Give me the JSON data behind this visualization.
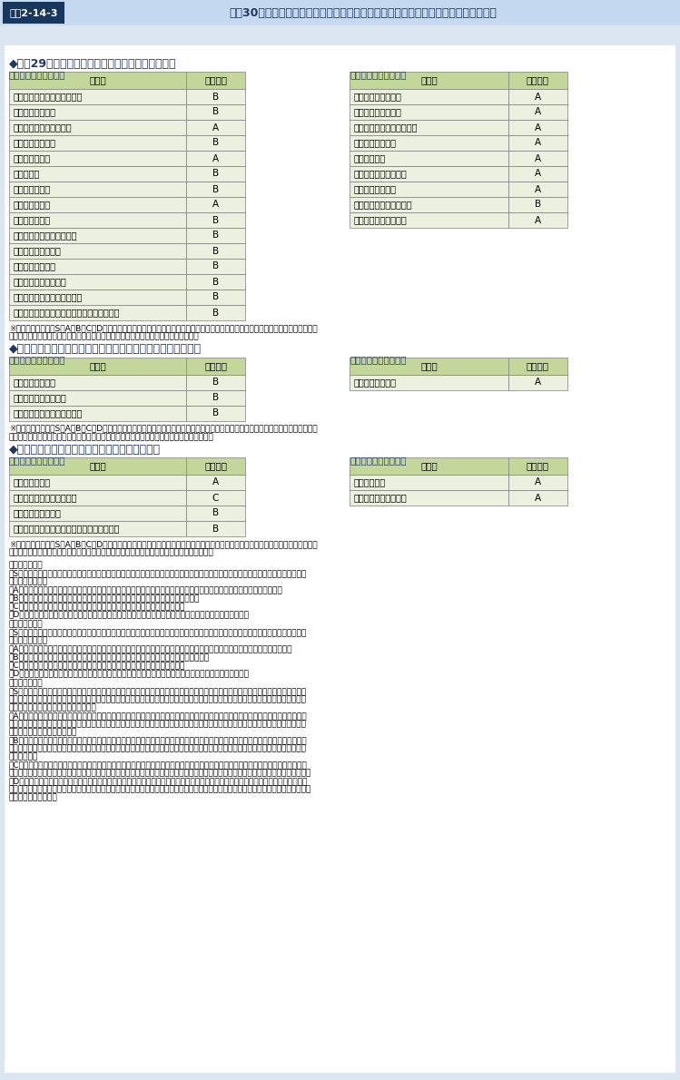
{
  "title_label": "図表2-14-3",
  "title_text": "平成30年度に実施した文部科学省所管独立行政法人等の業務の実績に関する評価結果",
  "section1_title": "◆平成29年度における業務の実績に関する評価結果",
  "section1_sub_left": "（中期目標管理法人）",
  "section1_sub_right": "（国立研究開発法人）",
  "section1_left": [
    [
      "国立特別支援教育総合研究所",
      "B"
    ],
    [
      "大学入試センター",
      "B"
    ],
    [
      "国立青少年教育振興機構",
      "A"
    ],
    [
      "国立女性教育会館",
      "B"
    ],
    [
      "国立科学博物館",
      "A"
    ],
    [
      "国立美術館",
      "B"
    ],
    [
      "国立文化財機構",
      "B"
    ],
    [
      "教職員支援機構",
      "A"
    ],
    [
      "日本学術振興会",
      "B"
    ],
    [
      "日本スポーツ振興センター",
      "B"
    ],
    [
      "日本芸術文化振興会",
      "B"
    ],
    [
      "日本学生支援機構",
      "B"
    ],
    [
      "国立高等専門学校機構",
      "B"
    ],
    [
      "大学改革支援・学位授与機構",
      "B"
    ],
    [
      "日本私立学校振興・共済事業団（助成業務）",
      "B"
    ]
  ],
  "section1_right": [
    [
      "物質・材料研究機構",
      "A"
    ],
    [
      "防災科学技術研究所",
      "A"
    ],
    [
      "量子科学技術研究開発機構",
      "A"
    ],
    [
      "科学技術振興機構",
      "A"
    ],
    [
      "理化学研究所",
      "A"
    ],
    [
      "宇宙航空研究開発機構",
      "A"
    ],
    [
      "海洋研究開発機構",
      "A"
    ],
    [
      "日本原子力研究開発機構",
      "B"
    ],
    [
      "日本医療研究開発機構",
      "A"
    ]
  ],
  "section1_note1": "※評定は，記述及びS，A，B，C，Dの５段階の評語を付すことにより行う。各年度における業務実績と評定区分の関係は，中期目標管",
  "section1_note2": "　理法人は以下の評定区分１，国立研究開発法人は以下の評定区分３のとおりである。",
  "section2_title": "◆目標期間の終了時に見込まれる業務の実績に関する評価結果",
  "section2_sub_left": "（中期目標管理法人）",
  "section2_sub_right": "（国立研究開発法人）",
  "section2_left": [
    [
      "日本学生支援機構",
      "B"
    ],
    [
      "国立高等専門学校機構",
      "B"
    ],
    [
      "大学改革支援・学位授与機構",
      "B"
    ]
  ],
  "section2_right": [
    [
      "海洋研究開発機構",
      "A"
    ]
  ],
  "section2_note1": "※評定は，記述及びS，A，B，C，Dの５段階の評語を付すことにより行う。目標期間における業務実績と評定区分の関係は，中期目標",
  "section2_note2": "　管理法人では以下の評定区分２，国立研究開発法人では以下の評定区分３のとおりである。",
  "section3_title": "◆目標期間における業務の実績に関する評価結果",
  "section3_sub_left": "（中期目標管理法人）",
  "section3_sub_right": "（国立研究開発法人）",
  "section3_left": [
    [
      "日本学術振興会",
      "A"
    ],
    [
      "日本スポーツ振興センター",
      "C"
    ],
    [
      "日本芸術文化振興会",
      "B"
    ],
    [
      "日本私立学校振興・共済事業団（助成業務）",
      "B"
    ]
  ],
  "section3_right": [
    [
      "理化学研究所",
      "A"
    ],
    [
      "宇宙航空研究開発機構",
      "A"
    ]
  ],
  "section3_note1": "※評定は，記述及びS，A，B，C，Dの５段階の評語を付すことにより行う。目標期間における業務実績と評定区分の関係は，中期目標",
  "section3_note2": "　管理法人では以下の評定区分２，国立研究開発法人では以下の評定区分３のとおりである。",
  "footer": [
    [
      "（評定区分１）",
      true
    ],
    [
      "　S：中期目標管理法人の活動により，全体として中期計画における所期の目標を量的及び質的に上回る顕著な成果が得られていると認",
      false
    ],
    [
      "　　　められる。",
      false
    ],
    [
      "　A：中期目標管理法人の活動により，全体として中期計画における所期の目標を上回る成果が得られていると認められる。",
      false
    ],
    [
      "　B：全体としておおむね中期計画における所期の目標を達成していると認められる。",
      false
    ],
    [
      "　C：全体として中期計画における所期の目標を下回っており，改善を要する。",
      false
    ],
    [
      "　D：全体として中期計画における所期の目標を下回っており，業務の廃止を含めた抜本的な改善を求める。",
      false
    ],
    [
      "（評定区分２）",
      true
    ],
    [
      "　S：中期目標管理法人の活動により，全体として中期目標における所期の目標を量的及び質的に上回る顕著な成果が得られていると認",
      false
    ],
    [
      "　　　められる。",
      false
    ],
    [
      "　A：中期目標管理法人の活動により，全体として中期目標における所期の目標を上回る成果が得られていると認められている。",
      false
    ],
    [
      "　B：全体としておおむね中期目標における所期の目標を達成していると認められている。",
      false
    ],
    [
      "　C：全体として中期目標における所期の目標を下回っており，改善を要する。",
      false
    ],
    [
      "　D：全体として中期目標における所期の目標を下回っており，業務の廃止を含めた抜本的な改善を求める。",
      false
    ],
    [
      "（評定区分３）",
      true
    ],
    [
      "　S：国立研究開発法人の目的・業務，中長期目標等に照らし，法人の活動による成果，取組等について請事情を踏まえて総合的に勘案",
      false
    ],
    [
      "　　　した結果，適正，効果的かつ効率的な業務運営の下で「研究開発成果の最大化」に向けて特に顕著な成果の創出や将来的な特別な",
      false
    ],
    [
      "　　　成果創出の期待等が認められる。",
      false
    ],
    [
      "　A：国立研究開発法人の目的・業務，中長期目標等に照らし，法人の活動による成果，取組等について請事情を踏まえて総合的に勘案",
      false
    ],
    [
      "　　　した結果，適正，効果的かつ効率的な業務運営の下で「研究開発成果の最大化」に向けて要著な成果の創出や将来的な成果の創出",
      false
    ],
    [
      "　　　の期待等が認められる。",
      false
    ],
    [
      "　B：国立研究開発法人の目的・業務，中長期目標等に照らし，法人の活動による成果，取組等について請事情を踏まえて総合的に勘案",
      false
    ],
    [
      "　　　した結果，「研究開発成果の最大化」に向けて成果の創出や将来的な成果の創出の期待等が認められ，着実な業務運営がなされて",
      false
    ],
    [
      "　　　いる。",
      false
    ],
    [
      "　C：国立研究開発法人の目的・業務，中長期目標等に照らし，法人の活動による成果，取組等について請事情を踏まえて総合的に勘案",
      false
    ],
    [
      "　　　した結果，「研究開発成果の最大化」又は「適正，効果的かつ効率的な業務運営」に向けてより一層の工夫，改善等が期待される。",
      false
    ],
    [
      "　D：国立研究開発法人の目的・業務，中長期目標等に照らし，法人の活動による成果，取組等について請事情を踏まえて総合的に勘案",
      false
    ],
    [
      "　　　した結果，「研究開発成果の最大化」又は「適正，効果的かつ効率的な業務運営」に向けて抜本的な見直しを含めた特段の工夫，改",
      false
    ],
    [
      "　　　善等を求める。",
      false
    ]
  ],
  "title_label_bg": "#17375e",
  "title_bar_bg": "#c5d9f1",
  "title_text_color": "#1f3864",
  "page_bg": "#dce6f1",
  "content_bg": "#ffffff",
  "table_header_bg": "#c4d79b",
  "table_row_bg": "#ebf1de",
  "table_border": "#7f7f7f",
  "section_title_color": "#1f3864",
  "sub_label_color": "#1f3864"
}
